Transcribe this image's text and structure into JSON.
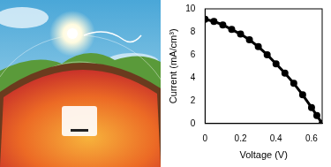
{
  "chart_data": {
    "type": "scatter",
    "x_label": "Voltage (V)",
    "y_label": "Current (mA/cm³)",
    "x": [
      0,
      0.05,
      0.1,
      0.15,
      0.2,
      0.25,
      0.3,
      0.35,
      0.4,
      0.45,
      0.5,
      0.55,
      0.6,
      0.63,
      0.66
    ],
    "values": [
      9.1,
      8.9,
      8.6,
      8.2,
      7.8,
      7.3,
      6.7,
      6.0,
      5.2,
      4.4,
      3.5,
      2.5,
      1.4,
      0.7,
      0
    ],
    "color": "#000000",
    "marker": "circle",
    "line_style": "solid",
    "xlim": [
      0,
      0.66
    ],
    "xticks": [
      0,
      0.2,
      0.4,
      0.6
    ],
    "ylim": [
      0,
      10
    ],
    "yticks": [
      0,
      2,
      4,
      6,
      8,
      10
    ],
    "grid": false
  }
}
